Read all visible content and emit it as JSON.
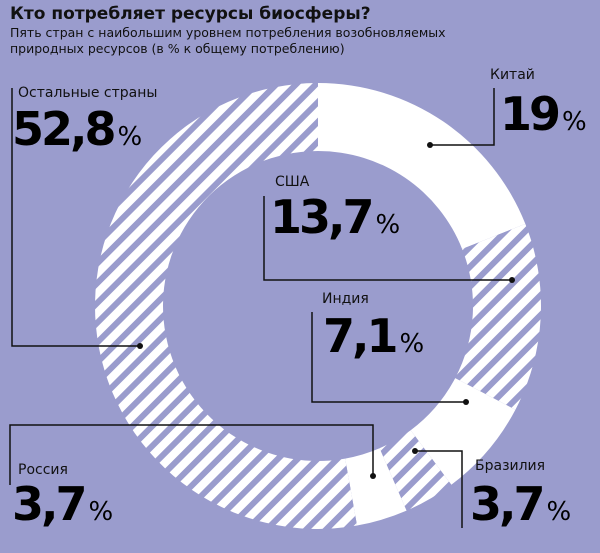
{
  "title": "Кто потребляет ресурсы биосферы?",
  "subtitle": "Пять стран с наибольшим уровнем потребления возобновляемых природных ресурсов (в % к общему потреблению)",
  "colors": {
    "background": "#9a9ccd",
    "ring": "#ffffff",
    "stripes": "#9a9ccd",
    "text": "#111111"
  },
  "chart_data": {
    "type": "pie",
    "donut": true,
    "unit": "%",
    "slices": [
      {
        "name": "Китай",
        "value": 19,
        "value_label": "19",
        "fill": "solid"
      },
      {
        "name": "США",
        "value": 13.7,
        "value_label": "13,7",
        "fill": "striped"
      },
      {
        "name": "Индия",
        "value": 7.1,
        "value_label": "7,1",
        "fill": "solid"
      },
      {
        "name": "Бразилия",
        "value": 3.7,
        "value_label": "3,7",
        "fill": "striped"
      },
      {
        "name": "Россия",
        "value": 3.7,
        "value_label": "3,7",
        "fill": "solid"
      },
      {
        "name": "Остальные страны",
        "value": 52.8,
        "value_label": "52,8",
        "fill": "striped"
      }
    ]
  }
}
